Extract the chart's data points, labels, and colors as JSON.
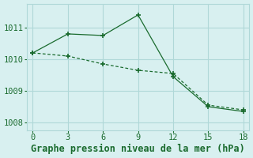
{
  "line1_x": [
    0,
    3,
    6,
    9,
    12,
    15,
    18
  ],
  "line1_y": [
    1010.2,
    1010.8,
    1010.75,
    1011.4,
    1009.45,
    1008.5,
    1008.35
  ],
  "line2_x": [
    0,
    3,
    6,
    9,
    12,
    15,
    18
  ],
  "line2_y": [
    1010.2,
    1010.1,
    1009.85,
    1009.65,
    1009.55,
    1008.55,
    1008.4
  ],
  "line_color": "#1a6b2e",
  "bg_color": "#d8f0f0",
  "grid_color": "#b0d8d8",
  "xlabel": "Graphe pression niveau de la mer (hPa)",
  "xlim": [
    -0.5,
    18.5
  ],
  "ylim": [
    1007.75,
    1011.75
  ],
  "xticks": [
    0,
    3,
    6,
    9,
    12,
    15,
    18
  ],
  "yticks": [
    1008,
    1009,
    1010,
    1011
  ],
  "xlabel_fontsize": 8.5,
  "tick_fontsize": 7.5
}
